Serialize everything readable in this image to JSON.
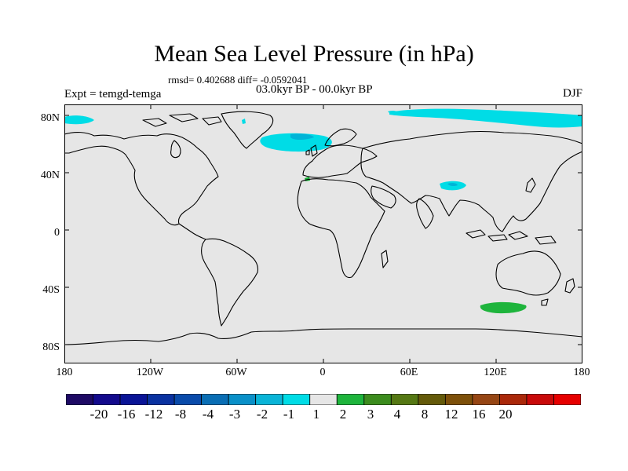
{
  "title": "Mean Sea Level Pressure (in hPa)",
  "stats_text": "rmsd= 0.402688 diff= -0.0592041",
  "period": "03.0kyr BP - 00.0kyr BP",
  "experiment": "Expt = temgd-temga",
  "season": "DJF",
  "map": {
    "lat_labels": [
      "80N",
      "40N",
      "0",
      "40S",
      "80S"
    ],
    "lon_labels": [
      "180",
      "120W",
      "60W",
      "0",
      "60E",
      "120E",
      "180"
    ],
    "ocean_color": "#e6e6e6",
    "land_outline_color": "#000000"
  },
  "anomaly_regions": [
    {
      "name": "North Atlantic low",
      "value_class": "-2 to -1",
      "color": "#00dce6"
    },
    {
      "name": "Arctic Siberia",
      "value_class": "-2 to -1",
      "color": "#00dce6"
    },
    {
      "name": "Alaska Arctic",
      "value_class": "-2 to -1",
      "color": "#00dce6"
    },
    {
      "name": "Tibetan Plateau",
      "value_class": "-2 to -1",
      "color": "#00dce6"
    },
    {
      "name": "Iberian coast",
      "value_class": "1 to 2",
      "color": "#1eb43c"
    },
    {
      "name": "Southern Ocean south of Australia",
      "value_class": "1 to 2",
      "color": "#1eb43c"
    }
  ],
  "colorbar": {
    "colors": [
      "#1e0a64",
      "#130a8c",
      "#0a1496",
      "#0a32a0",
      "#0a4baa",
      "#0a6eb4",
      "#0a90c8",
      "#0ab4d7",
      "#00dce6",
      "#e6e6e6",
      "#1eb43c",
      "#3c8c1e",
      "#557814",
      "#645a0a",
      "#7d500a",
      "#964614",
      "#aa280a",
      "#c80a0a",
      "#e60000"
    ],
    "labels": [
      "-20",
      "-16",
      "-12",
      "-8",
      "-4",
      "-3",
      "-2",
      "-1",
      "1",
      "2",
      "3",
      "4",
      "8",
      "12",
      "16",
      "20"
    ]
  }
}
